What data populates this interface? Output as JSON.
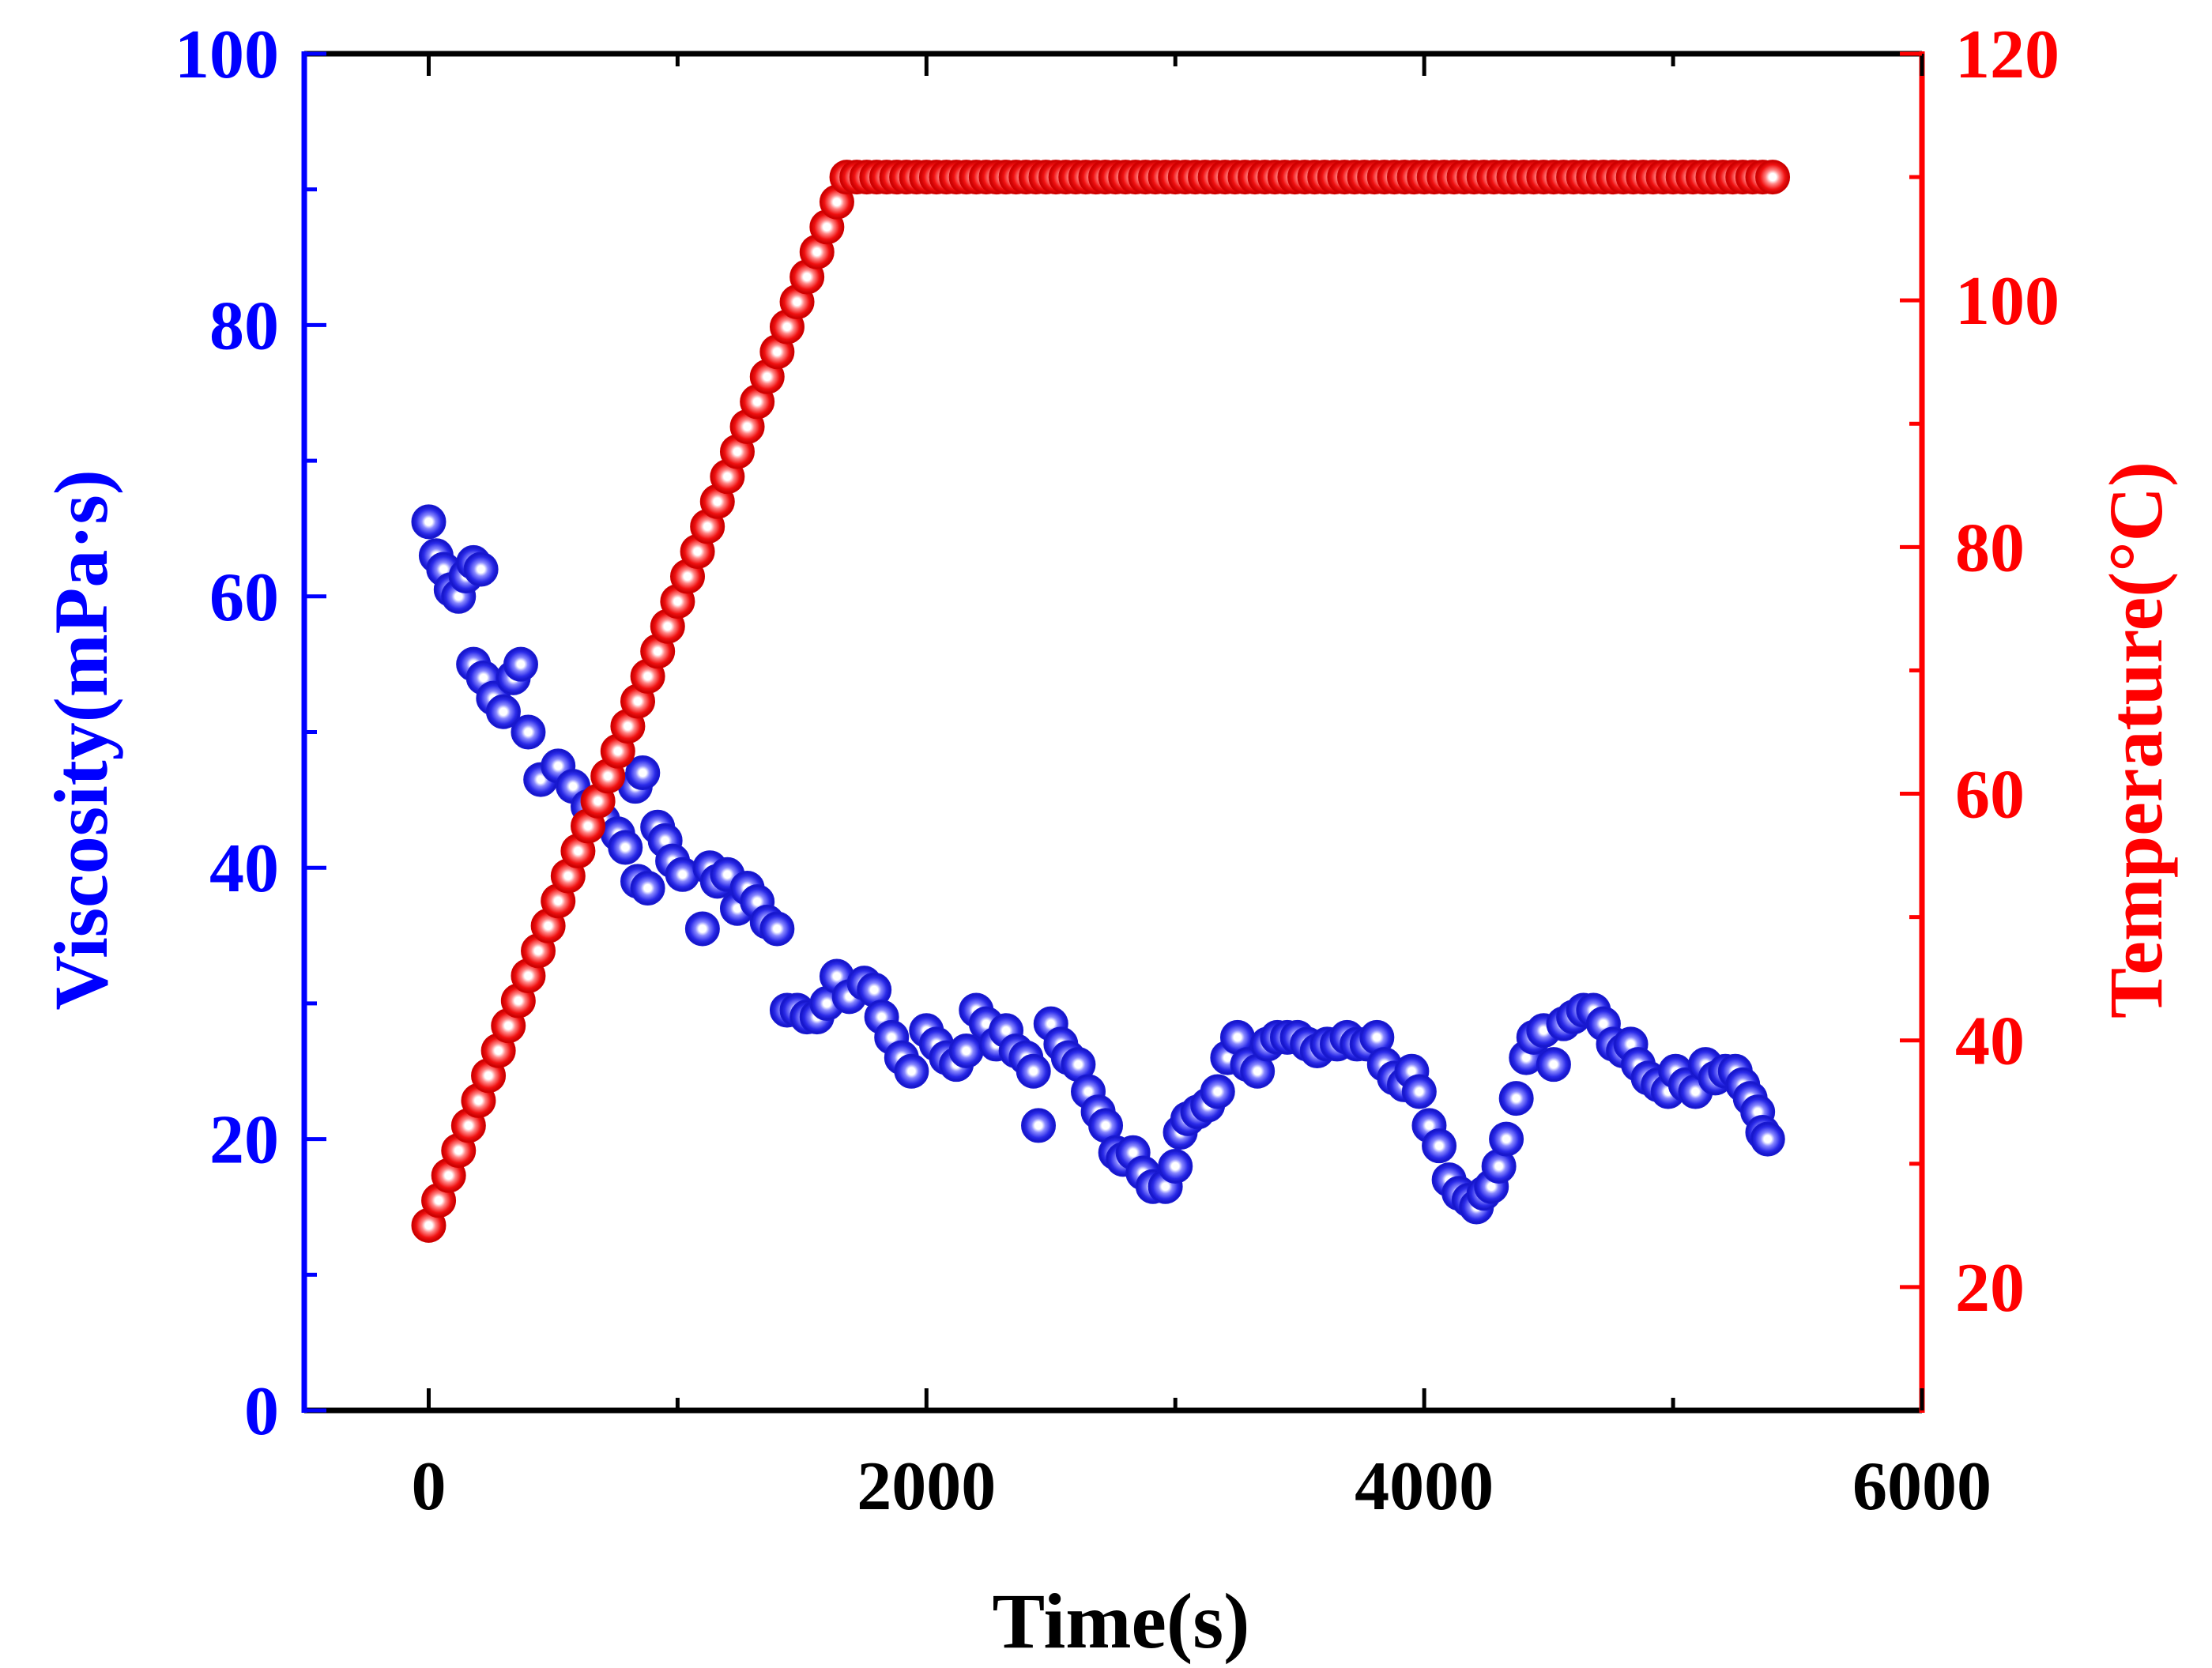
{
  "chart_data": {
    "type": "scatter",
    "dual_axis": true,
    "xlabel": "Time(s)",
    "ylabel_left": "Viscosity(mPa·s)",
    "ylabel_right": "Temperature(°C)",
    "xlim": [
      -500,
      6000
    ],
    "xticks": [
      0,
      2000,
      4000,
      6000
    ],
    "ylim_left": [
      0,
      100
    ],
    "yticks_left": [
      0,
      20,
      40,
      60,
      80,
      100
    ],
    "ylim_right": [
      10,
      120
    ],
    "yticks_right": [
      20,
      40,
      60,
      80,
      100,
      120
    ],
    "grid": false,
    "colors": {
      "left_axis": "#0000ff",
      "right_axis": "#ff0000",
      "top_axis": "#000000",
      "bottom_axis": "#000000"
    },
    "series": [
      {
        "name": "Viscosity",
        "axis": "left",
        "color": "#2222ee",
        "points": [
          [
            0,
            65.5
          ],
          [
            30,
            63
          ],
          [
            60,
            62
          ],
          [
            90,
            60.5
          ],
          [
            120,
            60
          ],
          [
            150,
            61.5
          ],
          [
            180,
            62.5
          ],
          [
            210,
            62
          ],
          [
            180,
            55
          ],
          [
            220,
            54
          ],
          [
            260,
            52.5
          ],
          [
            300,
            51.5
          ],
          [
            340,
            54
          ],
          [
            370,
            55
          ],
          [
            400,
            50
          ],
          [
            450,
            46.5
          ],
          [
            520,
            47.5
          ],
          [
            580,
            46
          ],
          [
            640,
            44.5
          ],
          [
            700,
            43.5
          ],
          [
            760,
            42.5
          ],
          [
            790,
            41.5
          ],
          [
            830,
            46
          ],
          [
            860,
            47
          ],
          [
            840,
            39
          ],
          [
            880,
            38.5
          ],
          [
            920,
            43
          ],
          [
            950,
            42
          ],
          [
            980,
            40.5
          ],
          [
            1020,
            39.5
          ],
          [
            1100,
            35.5
          ],
          [
            1130,
            40
          ],
          [
            1160,
            39
          ],
          [
            1200,
            39.5
          ],
          [
            1240,
            37
          ],
          [
            1280,
            38.5
          ],
          [
            1320,
            37.5
          ],
          [
            1360,
            36
          ],
          [
            1400,
            35.5
          ],
          [
            1440,
            29.5
          ],
          [
            1480,
            29.5
          ],
          [
            1520,
            29
          ],
          [
            1560,
            29
          ],
          [
            1600,
            30
          ],
          [
            1640,
            32
          ],
          [
            1690,
            30.5
          ],
          [
            1750,
            31.5
          ],
          [
            1790,
            31
          ],
          [
            1820,
            29
          ],
          [
            1860,
            27.5
          ],
          [
            1900,
            26
          ],
          [
            1940,
            25
          ],
          [
            2000,
            28
          ],
          [
            2040,
            27
          ],
          [
            2080,
            26
          ],
          [
            2120,
            25.5
          ],
          [
            2160,
            26.5
          ],
          [
            2200,
            29.5
          ],
          [
            2240,
            28.5
          ],
          [
            2280,
            27
          ],
          [
            2320,
            28
          ],
          [
            2360,
            26.5
          ],
          [
            2400,
            26
          ],
          [
            2430,
            25
          ],
          [
            2450,
            21
          ],
          [
            2500,
            28.5
          ],
          [
            2540,
            27
          ],
          [
            2570,
            26
          ],
          [
            2610,
            25.5
          ],
          [
            2650,
            23.5
          ],
          [
            2690,
            22
          ],
          [
            2720,
            21
          ],
          [
            2760,
            19
          ],
          [
            2790,
            18.5
          ],
          [
            2830,
            19
          ],
          [
            2870,
            17.5
          ],
          [
            2910,
            16.5
          ],
          [
            2960,
            16.5
          ],
          [
            3000,
            18
          ],
          [
            3020,
            20.5
          ],
          [
            3050,
            21.5
          ],
          [
            3090,
            22
          ],
          [
            3130,
            22.5
          ],
          [
            3170,
            23.5
          ],
          [
            3210,
            26
          ],
          [
            3250,
            27.5
          ],
          [
            3290,
            25.5
          ],
          [
            3330,
            25
          ],
          [
            3370,
            27
          ],
          [
            3410,
            27.5
          ],
          [
            3450,
            27.5
          ],
          [
            3490,
            27.5
          ],
          [
            3530,
            27
          ],
          [
            3570,
            26.5
          ],
          [
            3610,
            27
          ],
          [
            3650,
            27
          ],
          [
            3690,
            27.5
          ],
          [
            3730,
            27
          ],
          [
            3770,
            27
          ],
          [
            3810,
            27.5
          ],
          [
            3840,
            25.5
          ],
          [
            3880,
            24.5
          ],
          [
            3920,
            24
          ],
          [
            3950,
            25
          ],
          [
            3980,
            23.5
          ],
          [
            4020,
            21
          ],
          [
            4060,
            19.5
          ],
          [
            4100,
            17
          ],
          [
            4140,
            16
          ],
          [
            4180,
            15.5
          ],
          [
            4210,
            15
          ],
          [
            4240,
            16
          ],
          [
            4270,
            16.5
          ],
          [
            4300,
            18
          ],
          [
            4330,
            20
          ],
          [
            4370,
            23
          ],
          [
            4410,
            26
          ],
          [
            4440,
            27.5
          ],
          [
            4480,
            28
          ],
          [
            4520,
            25.5
          ],
          [
            4560,
            28.5
          ],
          [
            4600,
            29
          ],
          [
            4640,
            29.5
          ],
          [
            4680,
            29.5
          ],
          [
            4720,
            28.5
          ],
          [
            4760,
            27
          ],
          [
            4800,
            26.5
          ],
          [
            4830,
            27
          ],
          [
            4860,
            25.5
          ],
          [
            4900,
            24.5
          ],
          [
            4940,
            24
          ],
          [
            4980,
            23.5
          ],
          [
            5010,
            25
          ],
          [
            5050,
            24
          ],
          [
            5090,
            23.5
          ],
          [
            5130,
            25.5
          ],
          [
            5170,
            24.5
          ],
          [
            5210,
            25
          ],
          [
            5250,
            25
          ],
          [
            5280,
            24
          ],
          [
            5310,
            23
          ],
          [
            5340,
            22
          ],
          [
            5360,
            20.5
          ],
          [
            5380,
            20
          ]
        ]
      },
      {
        "name": "Temperature",
        "axis": "right",
        "color": "#ff0000",
        "linear_ramp": {
          "x_start": 0,
          "x_end": 1680,
          "y_start": 25,
          "y_end": 110,
          "step": 40
        },
        "plateau": {
          "x_start": 1720,
          "x_end": 5400,
          "y": 110,
          "step": 40
        }
      }
    ]
  }
}
